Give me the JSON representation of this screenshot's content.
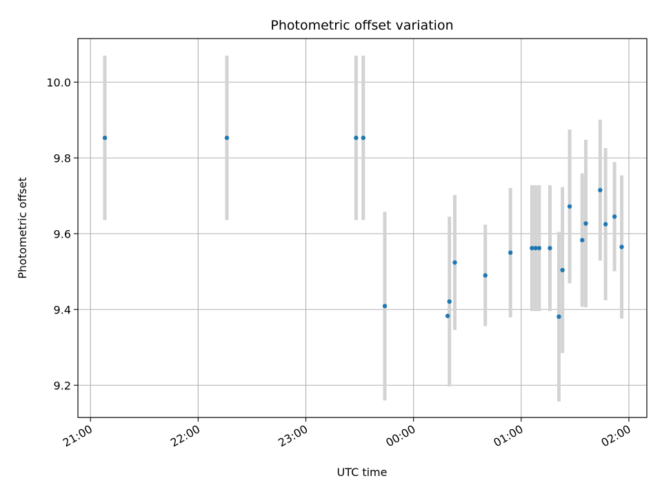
{
  "chart_data": {
    "type": "scatter",
    "title": "Photometric offset variation",
    "xlabel": "UTC time",
    "ylabel": "Photometric offset",
    "x_ticks": [
      "21:00",
      "22:00",
      "23:00",
      "00:00",
      "01:00",
      "02:00"
    ],
    "y_ticks": [
      "9.2",
      "9.4",
      "9.6",
      "9.8",
      "10.0"
    ],
    "xlim": [
      "20:53",
      "02:10"
    ],
    "ylim": [
      9.115,
      10.115
    ],
    "grid": true,
    "colors": {
      "point": "#1f77b4",
      "errorbar": "#d3d3d3",
      "grid": "#b0b0b0"
    },
    "points": [
      {
        "t": "21:08",
        "y": 9.853,
        "yerr": 0.217
      },
      {
        "t": "22:16",
        "y": 9.853,
        "yerr": 0.217
      },
      {
        "t": "23:28",
        "y": 9.853,
        "yerr": 0.217
      },
      {
        "t": "23:32",
        "y": 9.853,
        "yerr": 0.217
      },
      {
        "t": "23:44",
        "y": 9.409,
        "yerr": 0.249
      },
      {
        "t": "00:19",
        "y": 9.383,
        "yerr": 0.0
      },
      {
        "t": "00:20",
        "y": 9.421,
        "yerr": 0.224
      },
      {
        "t": "00:23",
        "y": 9.524,
        "yerr": 0.178
      },
      {
        "t": "00:40",
        "y": 9.49,
        "yerr": 0.134
      },
      {
        "t": "00:54",
        "y": 9.55,
        "yerr": 0.171
      },
      {
        "t": "01:06",
        "y": 9.562,
        "yerr": 0.166
      },
      {
        "t": "01:08",
        "y": 9.562,
        "yerr": 0.166
      },
      {
        "t": "01:10",
        "y": 9.562,
        "yerr": 0.166
      },
      {
        "t": "01:16",
        "y": 9.562,
        "yerr": 0.166
      },
      {
        "t": "01:21",
        "y": 9.381,
        "yerr": 0.224
      },
      {
        "t": "01:23",
        "y": 9.504,
        "yerr": 0.219
      },
      {
        "t": "01:27",
        "y": 9.672,
        "yerr": 0.203
      },
      {
        "t": "01:34",
        "y": 9.583,
        "yerr": 0.176
      },
      {
        "t": "01:36",
        "y": 9.627,
        "yerr": 0.221
      },
      {
        "t": "01:44",
        "y": 9.715,
        "yerr": 0.186
      },
      {
        "t": "01:47",
        "y": 9.625,
        "yerr": 0.201
      },
      {
        "t": "01:52",
        "y": 9.645,
        "yerr": 0.144
      },
      {
        "t": "01:56",
        "y": 9.565,
        "yerr": 0.189
      }
    ]
  }
}
